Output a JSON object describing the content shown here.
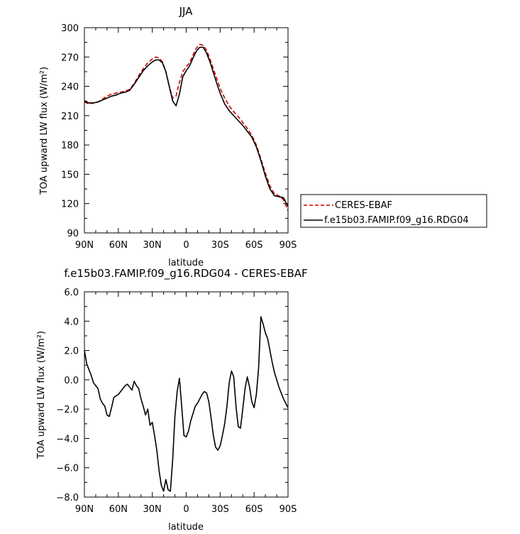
{
  "chart_data": [
    {
      "type": "line",
      "title": "JJA",
      "xlabel": "latitude",
      "ylabel": "TOA upward LW flux (W/m²)",
      "xlim": [
        90,
        -90
      ],
      "ylim": [
        90,
        300
      ],
      "xticks": [
        90,
        60,
        30,
        0,
        -30,
        -60,
        -90
      ],
      "xtick_labels": [
        "90N",
        "60N",
        "30N",
        "0",
        "30S",
        "60S",
        "90S"
      ],
      "yticks": [
        90,
        120,
        150,
        180,
        210,
        240,
        270,
        300
      ],
      "ytick_labels": [
        "90",
        "120",
        "150",
        "180",
        "210",
        "240",
        "270",
        "300"
      ],
      "legend_position": "right",
      "series": [
        {
          "name": "CERES-EBAF",
          "color": "#cc0000",
          "dash": "dashed",
          "x": [
            90,
            86,
            82,
            78,
            74,
            70,
            66,
            62,
            58,
            54,
            50,
            46,
            42,
            38,
            34,
            30,
            27,
            24,
            21,
            18,
            15,
            12,
            9,
            6,
            3,
            0,
            -3,
            -6,
            -9,
            -12,
            -15,
            -18,
            -21,
            -24,
            -27,
            -30,
            -34,
            -38,
            -42,
            -46,
            -50,
            -54,
            -58,
            -62,
            -66,
            -70,
            -74,
            -78,
            -82,
            -86,
            -90
          ],
          "y": [
            224,
            222,
            223,
            224,
            227,
            230,
            232,
            233,
            234,
            235,
            237,
            243,
            251,
            258,
            264,
            268,
            270,
            269,
            265,
            255,
            240,
            228,
            230,
            244,
            255,
            260,
            264,
            272,
            279,
            283,
            282,
            277,
            268,
            258,
            248,
            238,
            228,
            220,
            214,
            209,
            203,
            197,
            190,
            180,
            166,
            151,
            138,
            130,
            128,
            124,
            113
          ]
        },
        {
          "name": "f.e15b03.FAMIP.f09_g16.RDG04",
          "color": "#000000",
          "dash": "solid",
          "x": [
            90,
            86,
            82,
            78,
            74,
            70,
            66,
            62,
            58,
            54,
            50,
            46,
            42,
            38,
            34,
            30,
            27,
            24,
            21,
            18,
            15,
            12,
            9,
            6,
            3,
            0,
            -3,
            -6,
            -9,
            -12,
            -15,
            -18,
            -21,
            -24,
            -27,
            -30,
            -34,
            -38,
            -42,
            -46,
            -50,
            -54,
            -58,
            -62,
            -66,
            -70,
            -74,
            -78,
            -82,
            -86,
            -90
          ],
          "y": [
            225,
            223,
            223,
            224,
            226,
            228,
            230,
            231,
            233,
            234,
            236,
            242,
            249,
            256,
            261,
            265,
            267,
            267,
            264,
            255,
            240,
            225,
            220,
            232,
            250,
            256,
            261,
            269,
            276,
            280,
            280,
            274,
            265,
            254,
            243,
            233,
            222,
            215,
            210,
            205,
            200,
            194,
            188,
            178,
            164,
            148,
            135,
            128,
            127,
            126,
            117
          ]
        }
      ]
    },
    {
      "type": "line",
      "title": "f.e15b03.FAMIP.f09_g16.RDG04 - CERES-EBAF",
      "xlabel": "latitude",
      "ylabel": "TOA upward LW flux (W/m²)",
      "xlim": [
        90,
        -90
      ],
      "ylim": [
        -8,
        6
      ],
      "xticks": [
        90,
        60,
        30,
        0,
        -30,
        -60,
        -90
      ],
      "xtick_labels": [
        "90N",
        "60N",
        "30N",
        "0",
        "30S",
        "60S",
        "90S"
      ],
      "yticks": [
        -8,
        -6,
        -4,
        -2,
        0,
        2,
        4,
        6
      ],
      "ytick_labels": [
        "−8.0",
        "−6.0",
        "−4.0",
        "−2.0",
        "0.0",
        "2.0",
        "4.0",
        "6.0"
      ],
      "series": [
        {
          "color": "#000000",
          "x": [
            90,
            88,
            86,
            84,
            82,
            80,
            78,
            76,
            74,
            72,
            70,
            68,
            66,
            64,
            62,
            60,
            58,
            56,
            54,
            52,
            50,
            48,
            46,
            44,
            42,
            40,
            38,
            36,
            34,
            32,
            30,
            28,
            26,
            24,
            22,
            20,
            18,
            16,
            14,
            12,
            10,
            8,
            6,
            4,
            2,
            0,
            -2,
            -4,
            -6,
            -8,
            -10,
            -12,
            -14,
            -16,
            -18,
            -20,
            -22,
            -24,
            -26,
            -28,
            -30,
            -32,
            -34,
            -36,
            -38,
            -40,
            -42,
            -44,
            -46,
            -48,
            -50,
            -52,
            -54,
            -56,
            -58,
            -60,
            -62,
            -64,
            -66,
            -68,
            -70,
            -72,
            -74,
            -76,
            -78,
            -80,
            -82,
            -84,
            -86,
            -88,
            -90
          ],
          "y": [
            2.0,
            1.1,
            0.7,
            0.3,
            -0.2,
            -0.4,
            -0.6,
            -1.3,
            -1.6,
            -1.8,
            -2.4,
            -2.5,
            -1.9,
            -1.2,
            -1.1,
            -1.0,
            -0.8,
            -0.6,
            -0.4,
            -0.3,
            -0.5,
            -0.7,
            -0.1,
            -0.4,
            -0.6,
            -1.3,
            -1.8,
            -2.4,
            -2.0,
            -3.1,
            -2.9,
            -3.8,
            -4.8,
            -6.2,
            -7.2,
            -7.6,
            -6.8,
            -7.5,
            -7.6,
            -5.5,
            -2.5,
            -0.8,
            0.1,
            -1.8,
            -3.8,
            -3.9,
            -3.5,
            -2.8,
            -2.3,
            -1.8,
            -1.6,
            -1.3,
            -1.0,
            -0.8,
            -0.9,
            -1.5,
            -2.6,
            -3.8,
            -4.6,
            -4.8,
            -4.5,
            -3.8,
            -3.0,
            -1.8,
            -0.2,
            0.6,
            0.2,
            -1.8,
            -3.2,
            -3.3,
            -2.0,
            -0.6,
            0.2,
            -0.5,
            -1.5,
            -1.9,
            -1.0,
            0.8,
            4.3,
            3.8,
            3.2,
            2.8,
            2.0,
            1.2,
            0.5,
            0.0,
            -0.5,
            -0.9,
            -1.3,
            -1.6,
            -1.9
          ]
        }
      ]
    }
  ]
}
